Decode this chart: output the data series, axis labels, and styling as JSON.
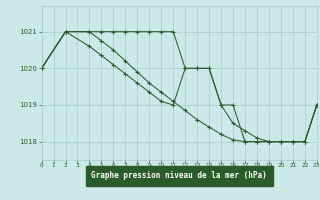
{
  "title": "Graphe pression niveau de la mer (hPa)",
  "bg_color": "#cce8e8",
  "grid_color": "#aacccc",
  "line_color": "#2a5c2a",
  "label_bg": "#2a5c2a",
  "label_fg": "#ffffff",
  "xlim": [
    0,
    23
  ],
  "ylim": [
    1017.5,
    1021.7
  ],
  "yticks": [
    1018,
    1019,
    1020,
    1021
  ],
  "xticks": [
    0,
    1,
    2,
    3,
    4,
    5,
    6,
    7,
    8,
    9,
    10,
    11,
    12,
    13,
    14,
    15,
    16,
    17,
    18,
    19,
    20,
    21,
    22,
    23
  ],
  "series": [
    {
      "x": [
        0,
        2,
        4,
        5,
        6,
        7,
        8,
        9,
        10,
        11,
        12,
        13,
        14,
        15,
        16,
        17,
        18,
        19,
        20,
        21,
        22,
        23
      ],
      "y": [
        1020.0,
        1021.0,
        1021.0,
        1021.0,
        1021.0,
        1021.0,
        1021.0,
        1021.0,
        1021.0,
        1021.0,
        1020.0,
        1020.0,
        1020.0,
        1019.0,
        1019.0,
        1018.0,
        1018.0,
        1018.0,
        1018.0,
        1018.0,
        1018.0,
        1019.0
      ]
    },
    {
      "x": [
        0,
        2,
        4,
        5,
        6,
        7,
        8,
        9,
        10,
        11,
        12,
        13,
        14,
        15,
        16,
        17,
        18,
        19,
        20,
        21,
        22,
        23
      ],
      "y": [
        1020.0,
        1021.0,
        1020.6,
        1020.35,
        1020.1,
        1019.85,
        1019.6,
        1019.35,
        1019.1,
        1019.0,
        1020.0,
        1020.0,
        1020.0,
        1019.0,
        1018.5,
        1018.3,
        1018.1,
        1018.0,
        1018.0,
        1018.0,
        1018.0,
        1019.0
      ]
    },
    {
      "x": [
        0,
        2,
        4,
        5,
        6,
        7,
        8,
        9,
        10,
        11,
        12,
        13,
        14,
        15,
        16,
        17,
        18,
        19,
        20,
        21,
        22,
        23
      ],
      "y": [
        1020.0,
        1021.0,
        1021.0,
        1020.75,
        1020.5,
        1020.2,
        1019.9,
        1019.6,
        1019.35,
        1019.1,
        1018.85,
        1018.6,
        1018.4,
        1018.2,
        1018.05,
        1018.0,
        1018.0,
        1018.0,
        1018.0,
        1018.0,
        1018.0,
        1019.0
      ]
    }
  ]
}
